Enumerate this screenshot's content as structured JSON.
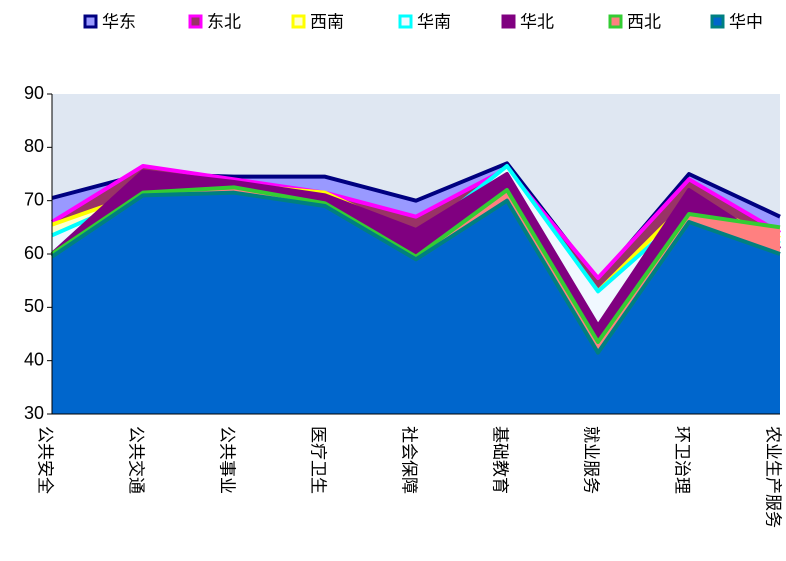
{
  "chart_data": {
    "type": "area",
    "categories": [
      "公共安全",
      "公共交通",
      "公共事业",
      "医疗卫生",
      "社会保障",
      "基础教育",
      "就业服务",
      "环卫治理",
      "农业生产服务"
    ],
    "series": [
      {
        "name": "华东",
        "color": "#000080",
        "fill": "#9999ff",
        "values": [
          70.5,
          75,
          74.5,
          74.5,
          70,
          77,
          55,
          75,
          67
        ]
      },
      {
        "name": "东北",
        "color": "#ff00ff",
        "fill": "#993366",
        "values": [
          66,
          76.5,
          74,
          71.5,
          67,
          76,
          55.5,
          74,
          64
        ]
      },
      {
        "name": "西南",
        "color": "#ffff00",
        "fill": "#ffffcc",
        "values": [
          65.5,
          71.5,
          73,
          71.5,
          63.5,
          76,
          53,
          70,
          63
        ]
      },
      {
        "name": "华南",
        "color": "#00ffff",
        "fill": "#f0f8ff",
        "values": [
          63.5,
          71,
          72.5,
          70.5,
          63,
          76.5,
          53,
          68,
          62
        ]
      },
      {
        "name": "华北",
        "color": "#800080",
        "fill": "#800080",
        "values": [
          60,
          75.5,
          73.5,
          71,
          64.5,
          75,
          46.5,
          72,
          61
        ]
      },
      {
        "name": "西北",
        "color": "#33cc33",
        "fill": "#ff8080",
        "values": [
          60,
          71.5,
          72.5,
          69.5,
          59.5,
          72,
          43.5,
          67.5,
          65
        ]
      },
      {
        "name": "华中",
        "color": "#008080",
        "fill": "#0066cc",
        "values": [
          59.5,
          71,
          71.5,
          69,
          59,
          70,
          41.5,
          66,
          60
        ]
      }
    ],
    "ylim": [
      30,
      90
    ],
    "yticks": [
      30,
      40,
      50,
      60,
      70,
      80,
      90
    ],
    "legend": "top",
    "background": "#dfe7f2"
  }
}
